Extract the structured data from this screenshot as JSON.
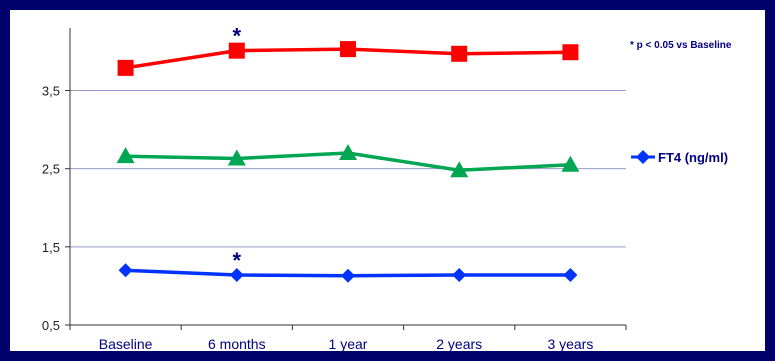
{
  "chart_data": {
    "type": "line",
    "categories": [
      "Baseline",
      "6 months",
      "1 year",
      "2 years",
      "3 years"
    ],
    "series": [
      {
        "name": "",
        "color": "#ff0000",
        "marker": "square",
        "values": [
          3.79,
          4.01,
          4.03,
          3.97,
          3.99
        ]
      },
      {
        "name": "",
        "color": "#00a651",
        "marker": "triangle",
        "values": [
          2.66,
          2.63,
          2.7,
          2.48,
          2.55
        ]
      },
      {
        "name": "FT4 (ng/ml)",
        "color": "#0033ff",
        "marker": "diamond",
        "values": [
          1.2,
          1.14,
          1.13,
          1.14,
          1.14
        ]
      }
    ],
    "yticks": [
      "0,5",
      "1,5",
      "2,5",
      "3,5"
    ],
    "ytick_values": [
      0.5,
      1.5,
      2.5,
      3.5
    ],
    "ylim": [
      0.5,
      4.3
    ],
    "grid": true,
    "legend_position": "right",
    "annotation": "* p < 0.05 vs Baseline",
    "significance_marks": [
      {
        "series_index": 0,
        "category_index": 1,
        "symbol": "*"
      },
      {
        "series_index": 2,
        "category_index": 1,
        "symbol": "*"
      }
    ],
    "frame_color": "#00006b",
    "grid_color": "#9999cc"
  }
}
